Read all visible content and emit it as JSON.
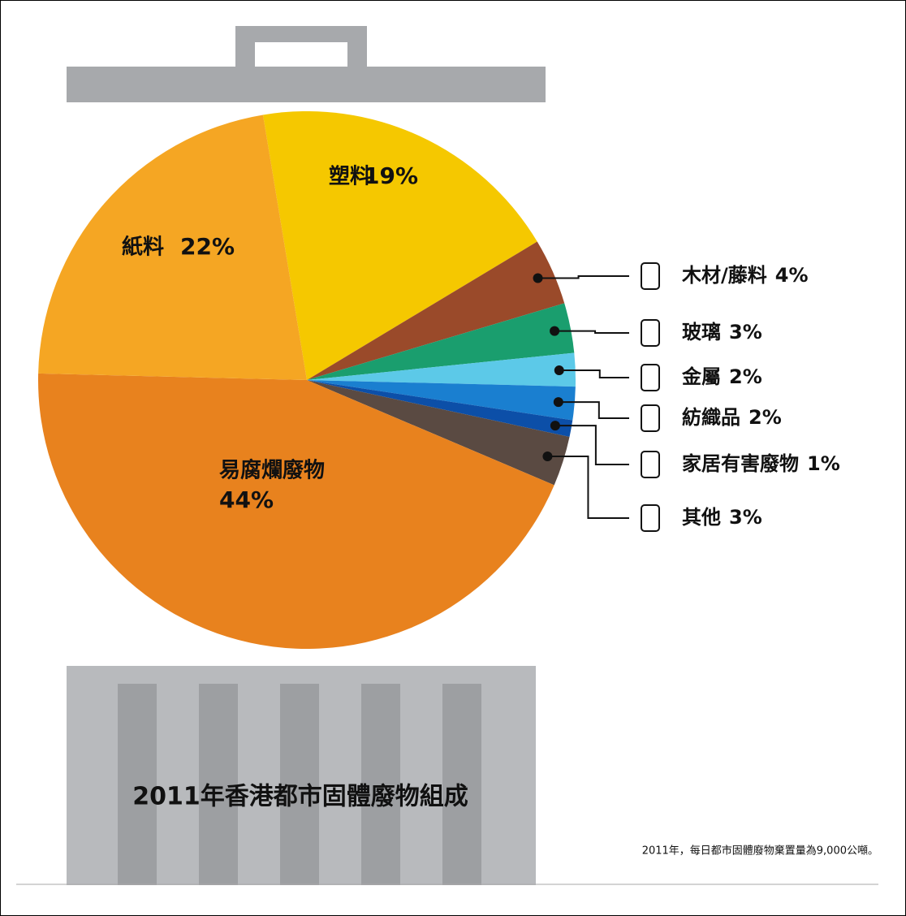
{
  "chart_data": {
    "type": "pie",
    "title": "2011年香港都市固體廢物組成",
    "note": "2011年，每日都市固體廢物棄置量為9,000公噸。",
    "categories": [
      "塑料",
      "木材/藤料",
      "玻璃",
      "金屬",
      "紡織品",
      "家居有害廢物",
      "其他",
      "易腐爛廢物",
      "紙料"
    ],
    "values": [
      19,
      4,
      3,
      2,
      2,
      1,
      3,
      44,
      22
    ],
    "value_labels": [
      "19%",
      "4%",
      "3%",
      "2%",
      "2%",
      "1%",
      "3%",
      "44%",
      "22%"
    ],
    "colors": [
      "#f5c800",
      "#9a4a2a",
      "#1a9e6e",
      "#5cc9e8",
      "#1a7fd0",
      "#0c4fa8",
      "#5a4a42",
      "#e8821e",
      "#f5a623"
    ]
  }
}
